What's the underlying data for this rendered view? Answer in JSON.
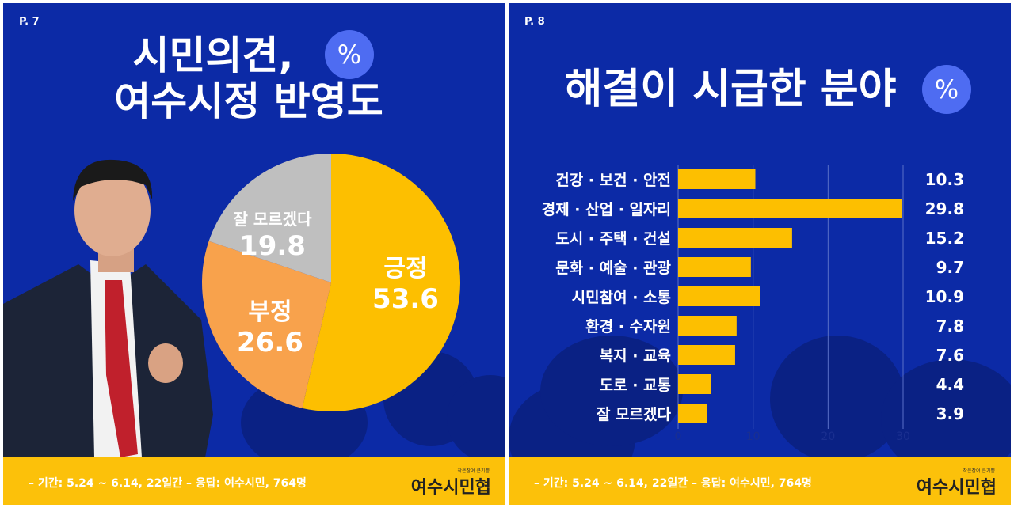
{
  "left": {
    "page": "P. 7",
    "title_line1": "시민의견,",
    "title_line2": "여수시정 반영도",
    "badge": "%",
    "footer": "– 기간: 5.24 ~ 6.14, 22일간   – 응답: 여수시민, 764명",
    "logo": "여수시민협",
    "logo_small": "작은참여 큰기쁨"
  },
  "right": {
    "page": "P. 8",
    "title": "해결이 시급한 분야",
    "badge": "%",
    "footer": "– 기간: 5.24 ~ 6.14, 22일간   – 응답: 여수시민, 764명",
    "logo": "여수시민협",
    "logo_small": "작은참여 큰기쁨"
  },
  "colors": {
    "background": "#0c2aa6",
    "bar": "#fdbf00",
    "footer": "#fcc10a"
  },
  "chart_data": [
    {
      "type": "pie",
      "slices": [
        {
          "label": "긍정",
          "value": 53.6,
          "color": "#fdbf00"
        },
        {
          "label": "부정",
          "value": 26.6,
          "color": "#f8a24c"
        },
        {
          "label": "잘 모르겠다",
          "value": 19.8,
          "color": "#bfbfbf"
        }
      ]
    },
    {
      "type": "bar",
      "orientation": "horizontal",
      "categories": [
        "건강 · 보건 · 안전",
        "경제 · 산업 · 일자리",
        "도시 · 주택 · 건설",
        "문화 · 예술 · 관광",
        "시민참여 · 소통",
        "환경 · 수자원",
        "복지 · 교육",
        "도로 · 교통",
        "잘 모르겠다"
      ],
      "values": [
        10.3,
        29.8,
        15.2,
        9.7,
        10.9,
        7.8,
        7.6,
        4.4,
        3.9
      ],
      "value_labels": [
        "10.3",
        "29.8",
        "15.2",
        "9.7",
        "10.9",
        "7.8",
        "7.6",
        "4.4",
        "3.9"
      ],
      "xlim": [
        0,
        30
      ],
      "xticks": [
        "0",
        "10",
        "20",
        "30"
      ],
      "grid": true
    }
  ]
}
